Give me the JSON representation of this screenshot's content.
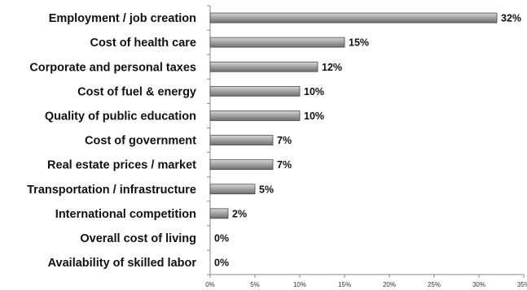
{
  "chart_data": {
    "type": "bar",
    "orientation": "horizontal",
    "categories": [
      "Employment / job creation",
      "Cost of health care",
      "Corporate and personal taxes",
      "Cost of fuel & energy",
      "Quality of public education",
      "Cost of government",
      "Real estate prices / market",
      "Transportation / infrastructure",
      "International competition",
      "Overall cost of living",
      "Availability of skilled labor"
    ],
    "values": [
      32,
      15,
      12,
      10,
      10,
      7,
      7,
      5,
      2,
      0,
      0
    ],
    "value_labels": [
      "32%",
      "15%",
      "12%",
      "10%",
      "10%",
      "7%",
      "7%",
      "5%",
      "2%",
      "0%",
      "0%"
    ],
    "xlim": [
      0,
      35
    ],
    "x_ticks": [
      0,
      5,
      10,
      15,
      20,
      25,
      30,
      35
    ],
    "x_tick_labels": [
      "0%",
      "5%",
      "10%",
      "15%",
      "20%",
      "25%",
      "30%",
      "35%"
    ],
    "grid": false,
    "legend": "none",
    "bar_color": "#8c8c8c"
  }
}
